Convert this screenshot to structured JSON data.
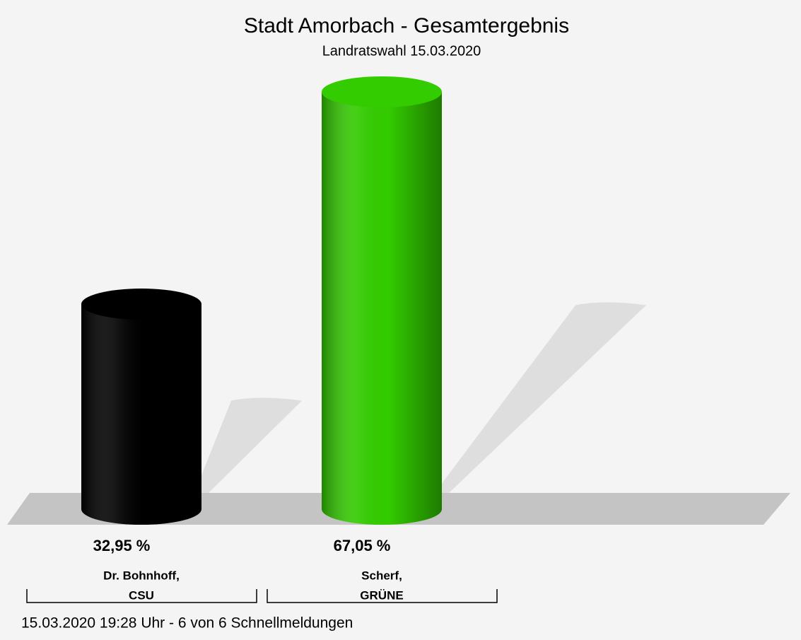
{
  "chart_data": {
    "type": "bar",
    "title": "Stadt Amorbach - Gesamtergebnis",
    "subtitle": "Landratswahl 15.03.2020",
    "categories": [
      [
        "Dr. Bohnhoff,",
        "CSU"
      ],
      [
        "Scherf,",
        "GRÜNE"
      ]
    ],
    "values": [
      32.95,
      67.05
    ],
    "value_labels": [
      "32,95 %",
      "67,05 %"
    ],
    "colors": [
      "#000000",
      "#33cc00"
    ],
    "footnote": "15.03.2020 19:28 Uhr - 6 von 6 Schnellmeldungen"
  }
}
